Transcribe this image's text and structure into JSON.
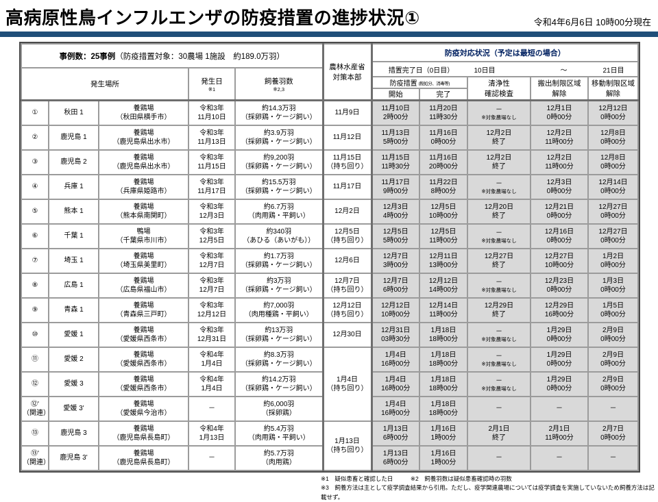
{
  "page": {
    "title": "高病原性鳥インフルエンザの防疫措置の進捗状況①",
    "as_of": "令和4年6月6日 10時00分現在",
    "accent_color": "#1F4E79",
    "gray_cell_color": "#D9D9D9"
  },
  "table": {
    "header": {
      "case_bold": "事例数：25事例",
      "case_rest": "（防疫措置対象：30農場 1施設　約189.0万羽）",
      "place": "発生場所",
      "date": "発生日|※1",
      "birds": "飼養羽数|※2,3",
      "hq": "農林水産省|対策本部",
      "status": "防疫対応状況（予定は最短の場合）",
      "t0": "措置完了日（0日目）",
      "t10": "10日目",
      "tmid": "～",
      "t21": "21日目",
      "measures": "防疫措置",
      "measures_small": "(殺処分、消毒等)",
      "start": "開始",
      "end": "完了",
      "clean": "清浄性|確認検査",
      "ship": "搬出制限区域|解除",
      "move": "移動制限区域|解除"
    },
    "columns": [
      {
        "k": "no"
      },
      {
        "k": "name"
      },
      {
        "k": "place"
      },
      {
        "k": "date"
      },
      {
        "k": "birds"
      },
      {
        "k": "hq",
        "c": "hq"
      },
      {
        "k": "start",
        "c": "g sep"
      },
      {
        "k": "end",
        "c": "g"
      },
      {
        "k": "clean",
        "c": "g"
      },
      {
        "k": "ship",
        "c": "g"
      },
      {
        "k": "move",
        "c": "g"
      }
    ],
    "rows": [
      {
        "no": "①",
        "name": "秋田 1",
        "place": "養鶏場|（秋田県横手市）",
        "date": "令和3年|11月10日",
        "birds": "約14.3万羽|（採卵鶏・ケージ飼い）",
        "hq": "11月9日",
        "start": "11月10日|2時00分",
        "end": "11月20日|11時30分",
        "clean": "－|※対象農場なし",
        "ship": "12月1日|0時00分",
        "move": "12月12日|0時00分"
      },
      {
        "no": "②",
        "name": "鹿児島 1",
        "place": "養鶏場|（鹿児島県出水市）",
        "date": "令和3年|11月13日",
        "birds": "約3.9万羽|（採卵鶏・ケージ飼い）",
        "hq": "11月12日",
        "start": "11月13日|5時00分",
        "end": "11月16日|0時00分",
        "clean": "12月2日|終了",
        "ship": "12月2日|11時00分",
        "move": "12月8日|0時00分"
      },
      {
        "no": "③",
        "name": "鹿児島 2",
        "place": "養鶏場|（鹿児島県出水市）",
        "date": "令和3年|11月15日",
        "birds": "約9,200羽|（採卵鶏・ケージ飼い）",
        "hq": "11月15日|（持ち回り）",
        "start": "11月15日|11時30分",
        "end": "11月16日|20時00分",
        "clean": "12月2日|終了",
        "ship": "12月2日|11時00分",
        "move": "12月8日|0時00分"
      },
      {
        "no": "④",
        "name": "兵庫 1",
        "place": "養鶏場|（兵庫県姫路市）",
        "date": "令和3年|11月17日",
        "birds": "約15.5万羽|（採卵鶏・ケージ飼い）",
        "hq": "11月17日",
        "start": "11月17日|9時00分",
        "end": "11月22日|8時00分",
        "clean": "－|※対象農場なし",
        "ship": "12月3日|0時00分",
        "move": "12月14日|0時00分"
      },
      {
        "no": "⑤",
        "name": "熊本 1",
        "place": "養鶏場|（熊本県南関町）",
        "date": "令和3年|12月3日",
        "birds": "約6.7万羽|（肉用鶏・平飼い）",
        "hq": "12月2日",
        "start": "12月3日|4時00分",
        "end": "12月5日|10時00分",
        "clean": "12月20日|終了",
        "ship": "12月21日|0時00分",
        "move": "12月27日|0時00分"
      },
      {
        "no": "⑥",
        "name": "千葉 1",
        "place": "鴨場|（千葉県市川市）",
        "date": "令和3年|12月5日",
        "birds": "約340羽|（あひる（あいがも））",
        "hq": "12月5日|（持ち回り）",
        "start": "12月5日|5時00分",
        "end": "12月5日|11時00分",
        "clean": "－|※対象農場なし",
        "ship": "12月16日|0時00分",
        "move": "12月27日|0時00分"
      },
      {
        "no": "⑦",
        "name": "埼玉 1",
        "place": "養鶏場|（埼玉県美里町）",
        "date": "令和3年|12月7日",
        "birds": "約1.7万羽|（採卵鶏・ケージ飼い）",
        "hq": "12月6日",
        "start": "12月7日|3時00分",
        "end": "12月11日|13時00分",
        "clean": "12月27日|終了",
        "ship": "12月27日|10時00分",
        "move": "1月2日|0時00分"
      },
      {
        "no": "⑧",
        "name": "広島 1",
        "place": "養鶏場|（広島県福山市）",
        "date": "令和3年|12月7日",
        "birds": "約3万羽|（採卵鶏・ケージ飼い）",
        "hq": "12月7日|（持ち回り）",
        "start": "12月7日|6時00分",
        "end": "12月12日|14時00分",
        "clean": "－|※対象農場なし",
        "ship": "12月23日|0時00分",
        "move": "1月3日|0時00分"
      },
      {
        "no": "⑨",
        "name": "青森 1",
        "place": "養鶏場|（青森県三戸町）",
        "date": "令和3年|12月12日",
        "birds": "約7,000羽|（肉用種鶏・平飼い）",
        "hq": "12月12日|（持ち回り）",
        "start": "12月12日|10時00分",
        "end": "12月14日|11時00分",
        "clean": "12月29日|終了",
        "ship": "12月29日|16時00分",
        "move": "1月5日|0時00分"
      },
      {
        "no": "⑩",
        "name": "愛媛 1",
        "place": "養鶏場|（愛媛県西条市）",
        "date": "令和3年|12月31日",
        "birds": "約13万羽|（採卵鶏・ケージ飼い）",
        "hq": "12月30日",
        "start": "12月31日|03時30分",
        "end": "1月18日|18時00分",
        "clean": "－|※対象農場なし",
        "ship": "1月29日|0時00分",
        "move": "2月9日|0時00分"
      },
      {
        "no": "⑪",
        "name": "愛媛 2",
        "place": "養鶏場|（愛媛県西条市）",
        "date": "令和4年|1月4日",
        "birds": "約8.3万羽|（採卵鶏・ケージ飼い）",
        "hq": {
          "t": "1月4日|（持ち回り）",
          "span": 3
        },
        "start": "1月4日|16時00分",
        "end": "1月18日|18時00分",
        "clean": "－|※対象農場なし",
        "ship": "1月29日|0時00分",
        "move": "2月9日|0時00分"
      },
      {
        "no": "⑫",
        "name": "愛媛 3",
        "place": "養鶏場|（愛媛県西条市）",
        "date": "令和4年|1月4日",
        "birds": "約14.2万羽|（採卵鶏・ケージ飼い）",
        "hq": null,
        "start": "1月4日|16時00分",
        "end": "1月18日|18時00分",
        "clean": "－|※対象農場なし",
        "ship": "1月29日|0時00分",
        "move": "2月9日|0時00分"
      },
      {
        "no": "⑫'|（関連）",
        "name": "愛媛 3'",
        "place": "養鶏場|（愛媛県今治市）",
        "date": "－",
        "birds": "約6,000羽|（採卵鶏）",
        "hq": null,
        "start": "1月4日|16時00分",
        "end": "1月18日|18時00分",
        "clean": "－",
        "ship": "－",
        "move": "－"
      },
      {
        "no": "⑬",
        "name": "鹿児島 3",
        "place": "養鶏場|（鹿児島県長島町）",
        "date": "令和4年|1月13日",
        "birds": "約5.4万羽|（肉用鶏・平飼い）",
        "hq": {
          "t": "1月13日|（持ち回り）",
          "span": 2
        },
        "start": "1月13日|6時00分",
        "end": "1月16日|1時00分",
        "clean": "2月1日|終了",
        "ship": "2月1日|11時00分",
        "move": "2月7日|0時00分"
      },
      {
        "no": "⑬'|（関連）",
        "name": "鹿児島 3'",
        "place": "養鶏場|（鹿児島県長島町）",
        "date": "－",
        "birds": "約5.7万羽|（肉用鶏）",
        "hq": null,
        "start": "1月13日|6時00分",
        "end": "1月16日|1時00分",
        "clean": "－",
        "ship": "－",
        "move": "－"
      }
    ]
  },
  "footnotes": {
    "line1": "※1　疑似患畜と確認した日　　　※2　飼養羽数は疑似患畜確認時の羽数",
    "line2": "※3　飼養方法は主として疫学調査結果から引用。ただし、疫学関連農場については疫学調査を実施していないため飼養方法は記載せず。"
  }
}
